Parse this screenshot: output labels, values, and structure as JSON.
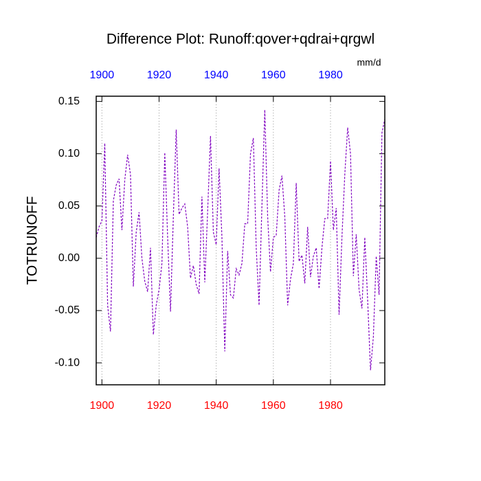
{
  "chart_data": {
    "type": "line",
    "title": "Difference Plot: Runoff:qover+qdrai+qrgwl",
    "ylabel": "TOTRUNOFF",
    "units": "mm/d",
    "x": [
      1898,
      1899,
      1900,
      1901,
      1902,
      1903,
      1904,
      1905,
      1906,
      1907,
      1908,
      1909,
      1910,
      1911,
      1912,
      1913,
      1914,
      1915,
      1916,
      1917,
      1918,
      1919,
      1920,
      1921,
      1922,
      1923,
      1924,
      1925,
      1926,
      1927,
      1928,
      1929,
      1930,
      1931,
      1932,
      1933,
      1934,
      1935,
      1936,
      1937,
      1938,
      1939,
      1940,
      1941,
      1942,
      1943,
      1944,
      1945,
      1946,
      1947,
      1948,
      1949,
      1950,
      1951,
      1952,
      1953,
      1954,
      1955,
      1956,
      1957,
      1958,
      1959,
      1960,
      1961,
      1962,
      1963,
      1964,
      1965,
      1966,
      1967,
      1968,
      1969,
      1970,
      1971,
      1972,
      1973,
      1974,
      1975,
      1976,
      1977,
      1978,
      1979,
      1980,
      1981,
      1982,
      1983,
      1984,
      1985,
      1986,
      1987,
      1988,
      1989,
      1990,
      1991,
      1992,
      1993,
      1994,
      1995,
      1996,
      1997,
      1998,
      1999
    ],
    "series": [
      {
        "color": "#8000c0",
        "values": [
          0.02,
          0.03,
          0.036,
          0.11,
          -0.045,
          -0.07,
          0.055,
          0.07,
          0.076,
          0.027,
          0.075,
          0.099,
          0.08,
          -0.027,
          0.025,
          0.044,
          0.0,
          -0.022,
          -0.032,
          0.01,
          -0.073,
          -0.045,
          -0.03,
          -0.005,
          0.101,
          0.02,
          -0.051,
          0.04,
          0.123,
          0.042,
          0.048,
          0.052,
          0.03,
          -0.019,
          -0.007,
          -0.025,
          -0.034,
          0.059,
          -0.023,
          0.045,
          0.117,
          0.025,
          0.013,
          0.086,
          0.02,
          -0.089,
          0.007,
          -0.035,
          -0.038,
          -0.01,
          -0.016,
          -0.005,
          0.033,
          0.033,
          0.1,
          0.115,
          0.01,
          -0.045,
          0.05,
          0.142,
          0.04,
          -0.013,
          0.02,
          0.022,
          0.065,
          0.079,
          0.04,
          -0.045,
          -0.02,
          -0.005,
          0.072,
          -0.003,
          0.003,
          -0.024,
          0.03,
          -0.018,
          0.002,
          0.01,
          -0.029,
          0.01,
          0.038,
          0.038,
          0.093,
          0.027,
          0.048,
          -0.054,
          0.02,
          0.08,
          0.125,
          0.1,
          -0.017,
          0.023,
          -0.03,
          -0.048,
          0.02,
          -0.04,
          -0.107,
          -0.075,
          0.002,
          -0.035,
          0.12,
          0.133
        ]
      }
    ],
    "xlim": [
      1898,
      1999
    ],
    "xticks": [
      1900,
      1920,
      1940,
      1960,
      1980
    ],
    "ylim": [
      -0.121,
      0.155
    ],
    "yticks": [
      {
        "value": 0.15,
        "label": "0.15"
      },
      {
        "value": 0.1,
        "label": "0.10"
      },
      {
        "value": 0.05,
        "label": "0.05"
      },
      {
        "value": 0,
        "label": "0.00"
      },
      {
        "value": -0.05,
        "label": "-0.05"
      },
      {
        "value": -0.1,
        "label": "-0.10"
      }
    ],
    "x_top_tick_color": "#0000ff",
    "x_bottom_tick_color": "#ff0000",
    "xgrid": true,
    "dashed": true
  }
}
